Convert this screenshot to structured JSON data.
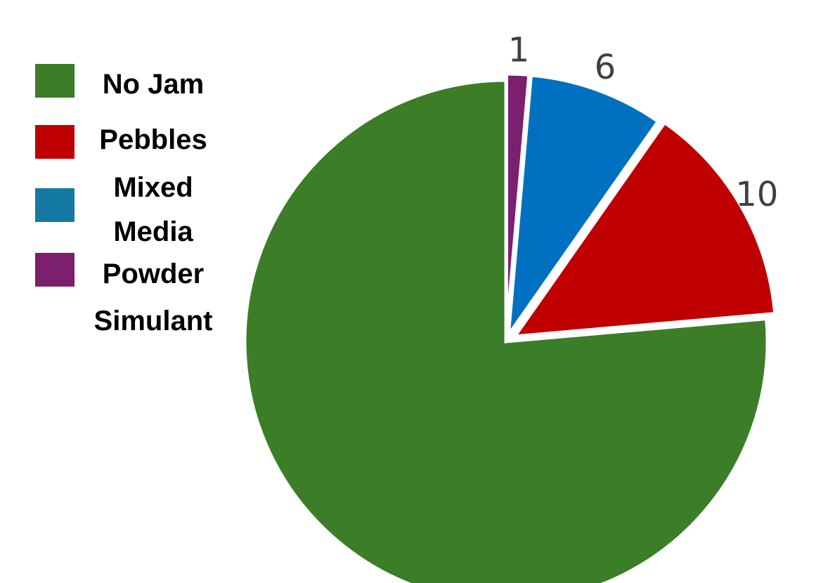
{
  "chart_data": {
    "type": "pie",
    "title": "",
    "categories": [
      "No Jam",
      "Pebbles",
      "Mixed Media",
      "Powder Simulant"
    ],
    "values": [
      55,
      10,
      6,
      1
    ],
    "value_labels": [
      "",
      "10",
      "6",
      "1"
    ],
    "colors": [
      "#3c7d27",
      "#c00000",
      "#0070c0",
      "#7b1f6e"
    ],
    "legend_colors": [
      "#3c7d27",
      "#c00000",
      "#157aa3",
      "#7b1f6e"
    ],
    "legend": {
      "position": "left",
      "entries": [
        {
          "lines": [
            "No Jam"
          ]
        },
        {
          "lines": [
            "Pebbles"
          ]
        },
        {
          "lines": [
            "Mixed",
            "Media"
          ]
        },
        {
          "lines": [
            "Powder",
            "Simulant"
          ]
        }
      ]
    },
    "start_angle": "12 o'clock",
    "direction": "clockwise",
    "order": [
      "Powder Simulant",
      "Mixed Media",
      "Pebbles",
      "No Jam"
    ]
  }
}
